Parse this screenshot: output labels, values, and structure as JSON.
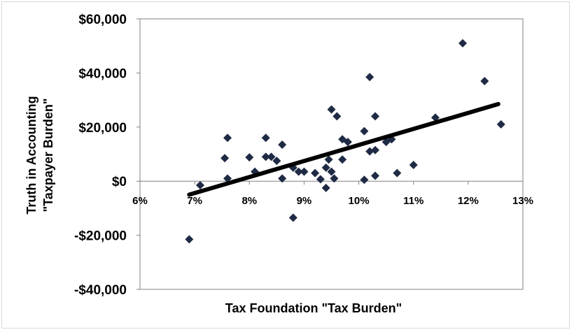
{
  "chart_data": {
    "type": "scatter",
    "title": "",
    "xlabel": "Tax Foundation \"Tax Burden\"",
    "ylabel_lines": [
      "Truth in Accounting",
      "\"Taxpayer Burden\""
    ],
    "xlim": [
      6,
      13
    ],
    "ylim": [
      -40000,
      60000
    ],
    "x_ticks": [
      6,
      7,
      8,
      9,
      10,
      11,
      12,
      13
    ],
    "x_tick_labels": [
      "6%",
      "7%",
      "8%",
      "9%",
      "10%",
      "11%",
      "12%",
      "13%"
    ],
    "y_ticks": [
      60000,
      40000,
      20000,
      0,
      -20000,
      -40000
    ],
    "y_tick_labels": [
      "$60,000",
      "$40,000",
      "$20,000",
      "$0",
      "-$20,000",
      "-$40,000"
    ],
    "grid": false,
    "marker": "diamond",
    "marker_color": "#1f2a44",
    "trendline_color": "#000000",
    "series": [
      {
        "points": [
          [
            6.9,
            -21500
          ],
          [
            7.1,
            -1500
          ],
          [
            7.55,
            8500
          ],
          [
            7.6,
            16000
          ],
          [
            7.6,
            1000
          ],
          [
            8.0,
            8800
          ],
          [
            8.1,
            3500
          ],
          [
            8.3,
            16000
          ],
          [
            8.3,
            9000
          ],
          [
            8.4,
            9000
          ],
          [
            8.5,
            7500
          ],
          [
            8.6,
            13500
          ],
          [
            8.6,
            1000
          ],
          [
            8.8,
            -13500
          ],
          [
            8.8,
            5000
          ],
          [
            8.9,
            3500
          ],
          [
            9.0,
            3500
          ],
          [
            9.2,
            3000
          ],
          [
            9.3,
            700
          ],
          [
            9.4,
            -2500
          ],
          [
            9.4,
            5000
          ],
          [
            9.45,
            8000
          ],
          [
            9.5,
            26500
          ],
          [
            9.5,
            3500
          ],
          [
            9.55,
            1000
          ],
          [
            9.6,
            24000
          ],
          [
            9.7,
            15500
          ],
          [
            9.7,
            8000
          ],
          [
            9.8,
            14500
          ],
          [
            10.1,
            18500
          ],
          [
            10.1,
            500
          ],
          [
            10.2,
            38500
          ],
          [
            10.2,
            11000
          ],
          [
            10.3,
            24000
          ],
          [
            10.3,
            11500
          ],
          [
            10.3,
            2000
          ],
          [
            10.5,
            14500
          ],
          [
            10.6,
            15500
          ],
          [
            10.7,
            3000
          ],
          [
            11.0,
            6000
          ],
          [
            11.4,
            23500
          ],
          [
            11.9,
            51000
          ],
          [
            12.3,
            37000
          ],
          [
            12.6,
            21000
          ]
        ]
      }
    ],
    "trendline": {
      "x": [
        6.9,
        12.55
      ],
      "y": [
        -5000,
        28500
      ]
    }
  }
}
